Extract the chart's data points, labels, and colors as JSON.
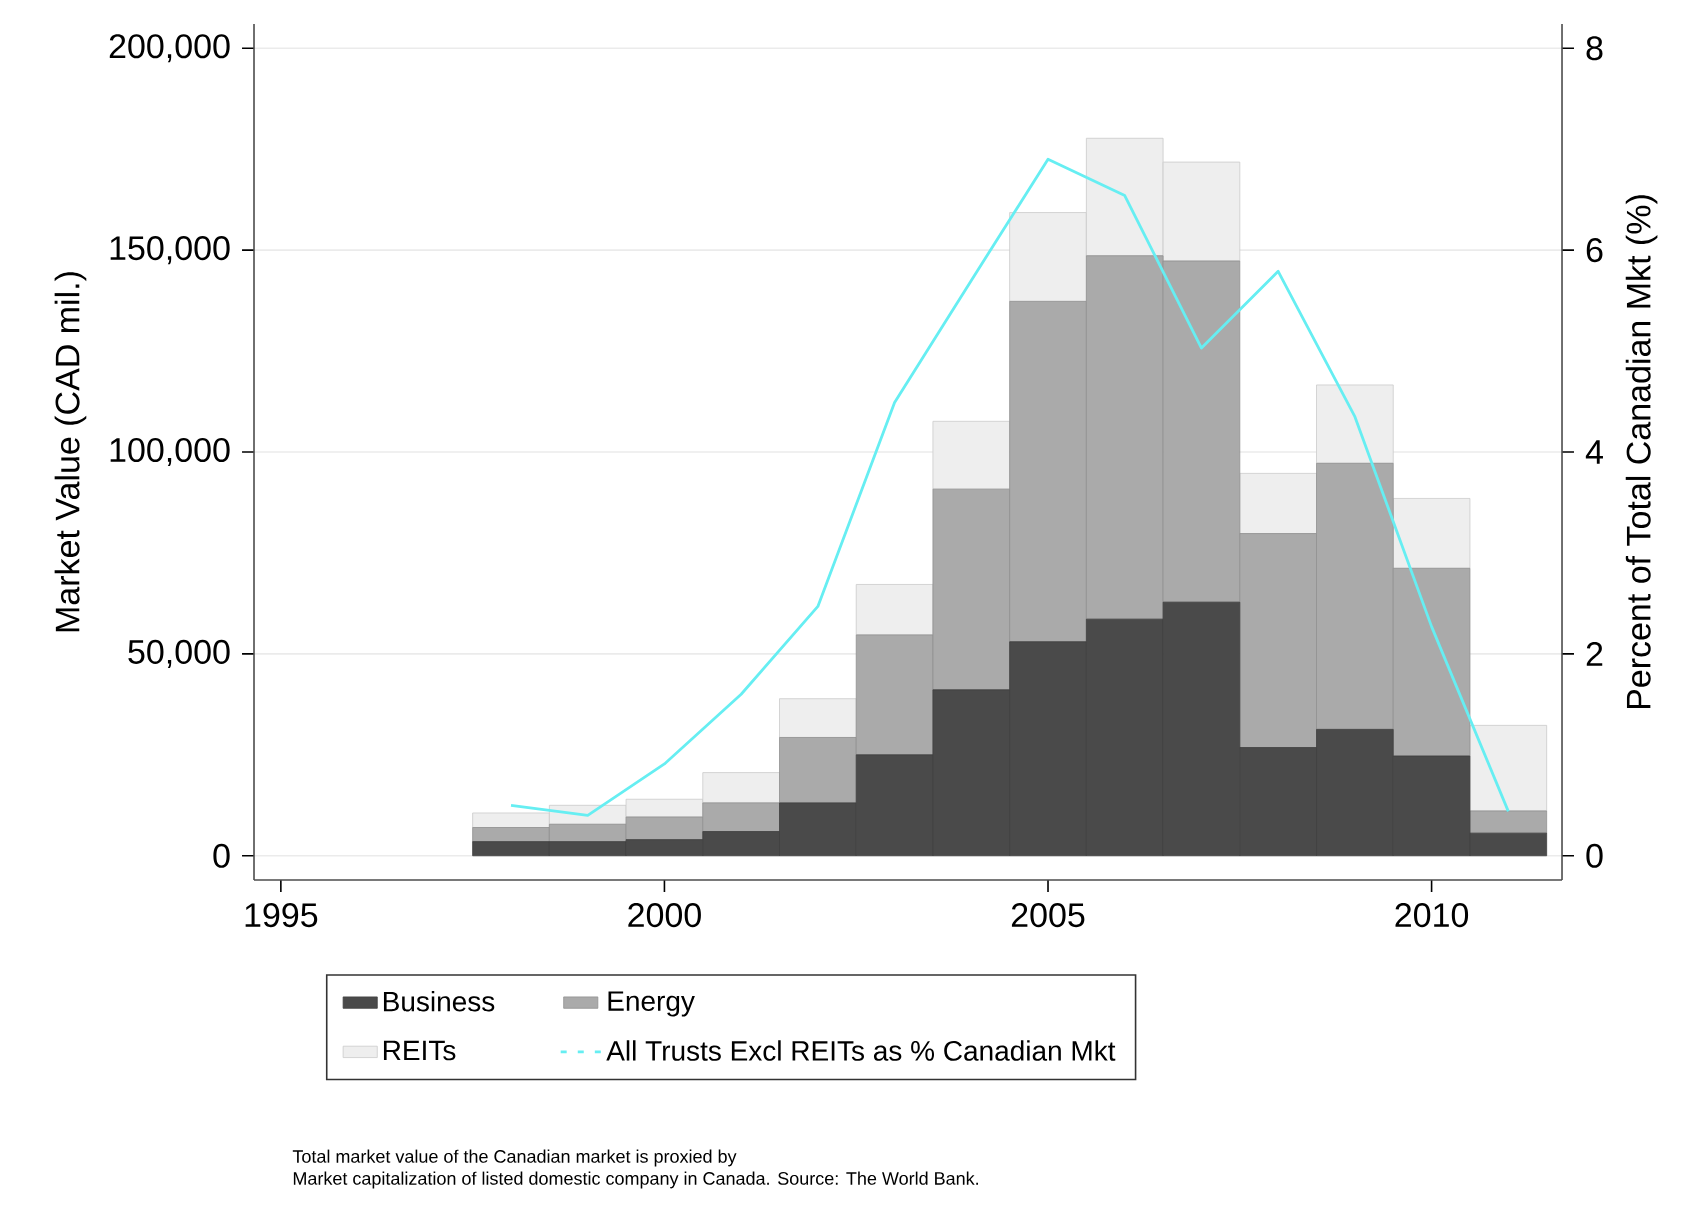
{
  "chart_data": {
    "type": "bar",
    "stacked": true,
    "ylabel": "Market Value (CAD mil.)",
    "y2label": "Percent of Total Canadian Mkt (%)",
    "x": [
      1998,
      1999,
      2000,
      2001,
      2002,
      2003,
      2004,
      2005,
      2006,
      2007,
      2008,
      2009,
      2010,
      2011
    ],
    "xlim": [
      1994.65,
      2011.7
    ],
    "xticks": [
      1995,
      2000,
      2005,
      2010
    ],
    "ylim": [
      -6000,
      206000
    ],
    "yticks": [
      {
        "value": 0,
        "label": "0"
      },
      {
        "value": 50000,
        "label": "50,000"
      },
      {
        "value": 100000,
        "label": "100,000"
      },
      {
        "value": 150000,
        "label": "150,000"
      },
      {
        "value": 200000,
        "label": "200,000"
      }
    ],
    "y2lim": [
      -0.24,
      8.24
    ],
    "y2ticks": [
      0,
      2,
      4,
      6,
      8
    ],
    "grid": "y",
    "legend": "bottom",
    "series": [
      {
        "name": "Business",
        "color": "#4a4a4a",
        "values": [
          3500,
          3500,
          4000,
          6000,
          13100,
          25000,
          41100,
          53000,
          58600,
          62800,
          26800,
          31300,
          24700,
          5600
        ]
      },
      {
        "name": "Energy",
        "color": "#aaaaaa",
        "values": [
          3500,
          4300,
          5600,
          7100,
          16200,
          29700,
          49700,
          84300,
          90000,
          84500,
          53000,
          65900,
          46500,
          5500
        ]
      },
      {
        "name": "REITs",
        "color": "#eeeeee",
        "values": [
          3600,
          4700,
          4400,
          7500,
          9600,
          12500,
          16800,
          22000,
          29100,
          24500,
          14900,
          19400,
          17300,
          21200
        ]
      },
      {
        "name": "All Trusts Excl REITs as % Canadian Mkt",
        "color": "#66eef2",
        "type": "line",
        "axis": "y2",
        "values": [
          0.5,
          0.4,
          0.91,
          1.6,
          2.47,
          4.49,
          5.7,
          6.9,
          6.54,
          5.03,
          5.79,
          4.35,
          2.27,
          0.44
        ]
      }
    ],
    "annotations": [
      "Total market value of the Canadian market is proxied by",
      "Market capitalization of listed domestic company in Canada. Source: The World Bank."
    ]
  }
}
